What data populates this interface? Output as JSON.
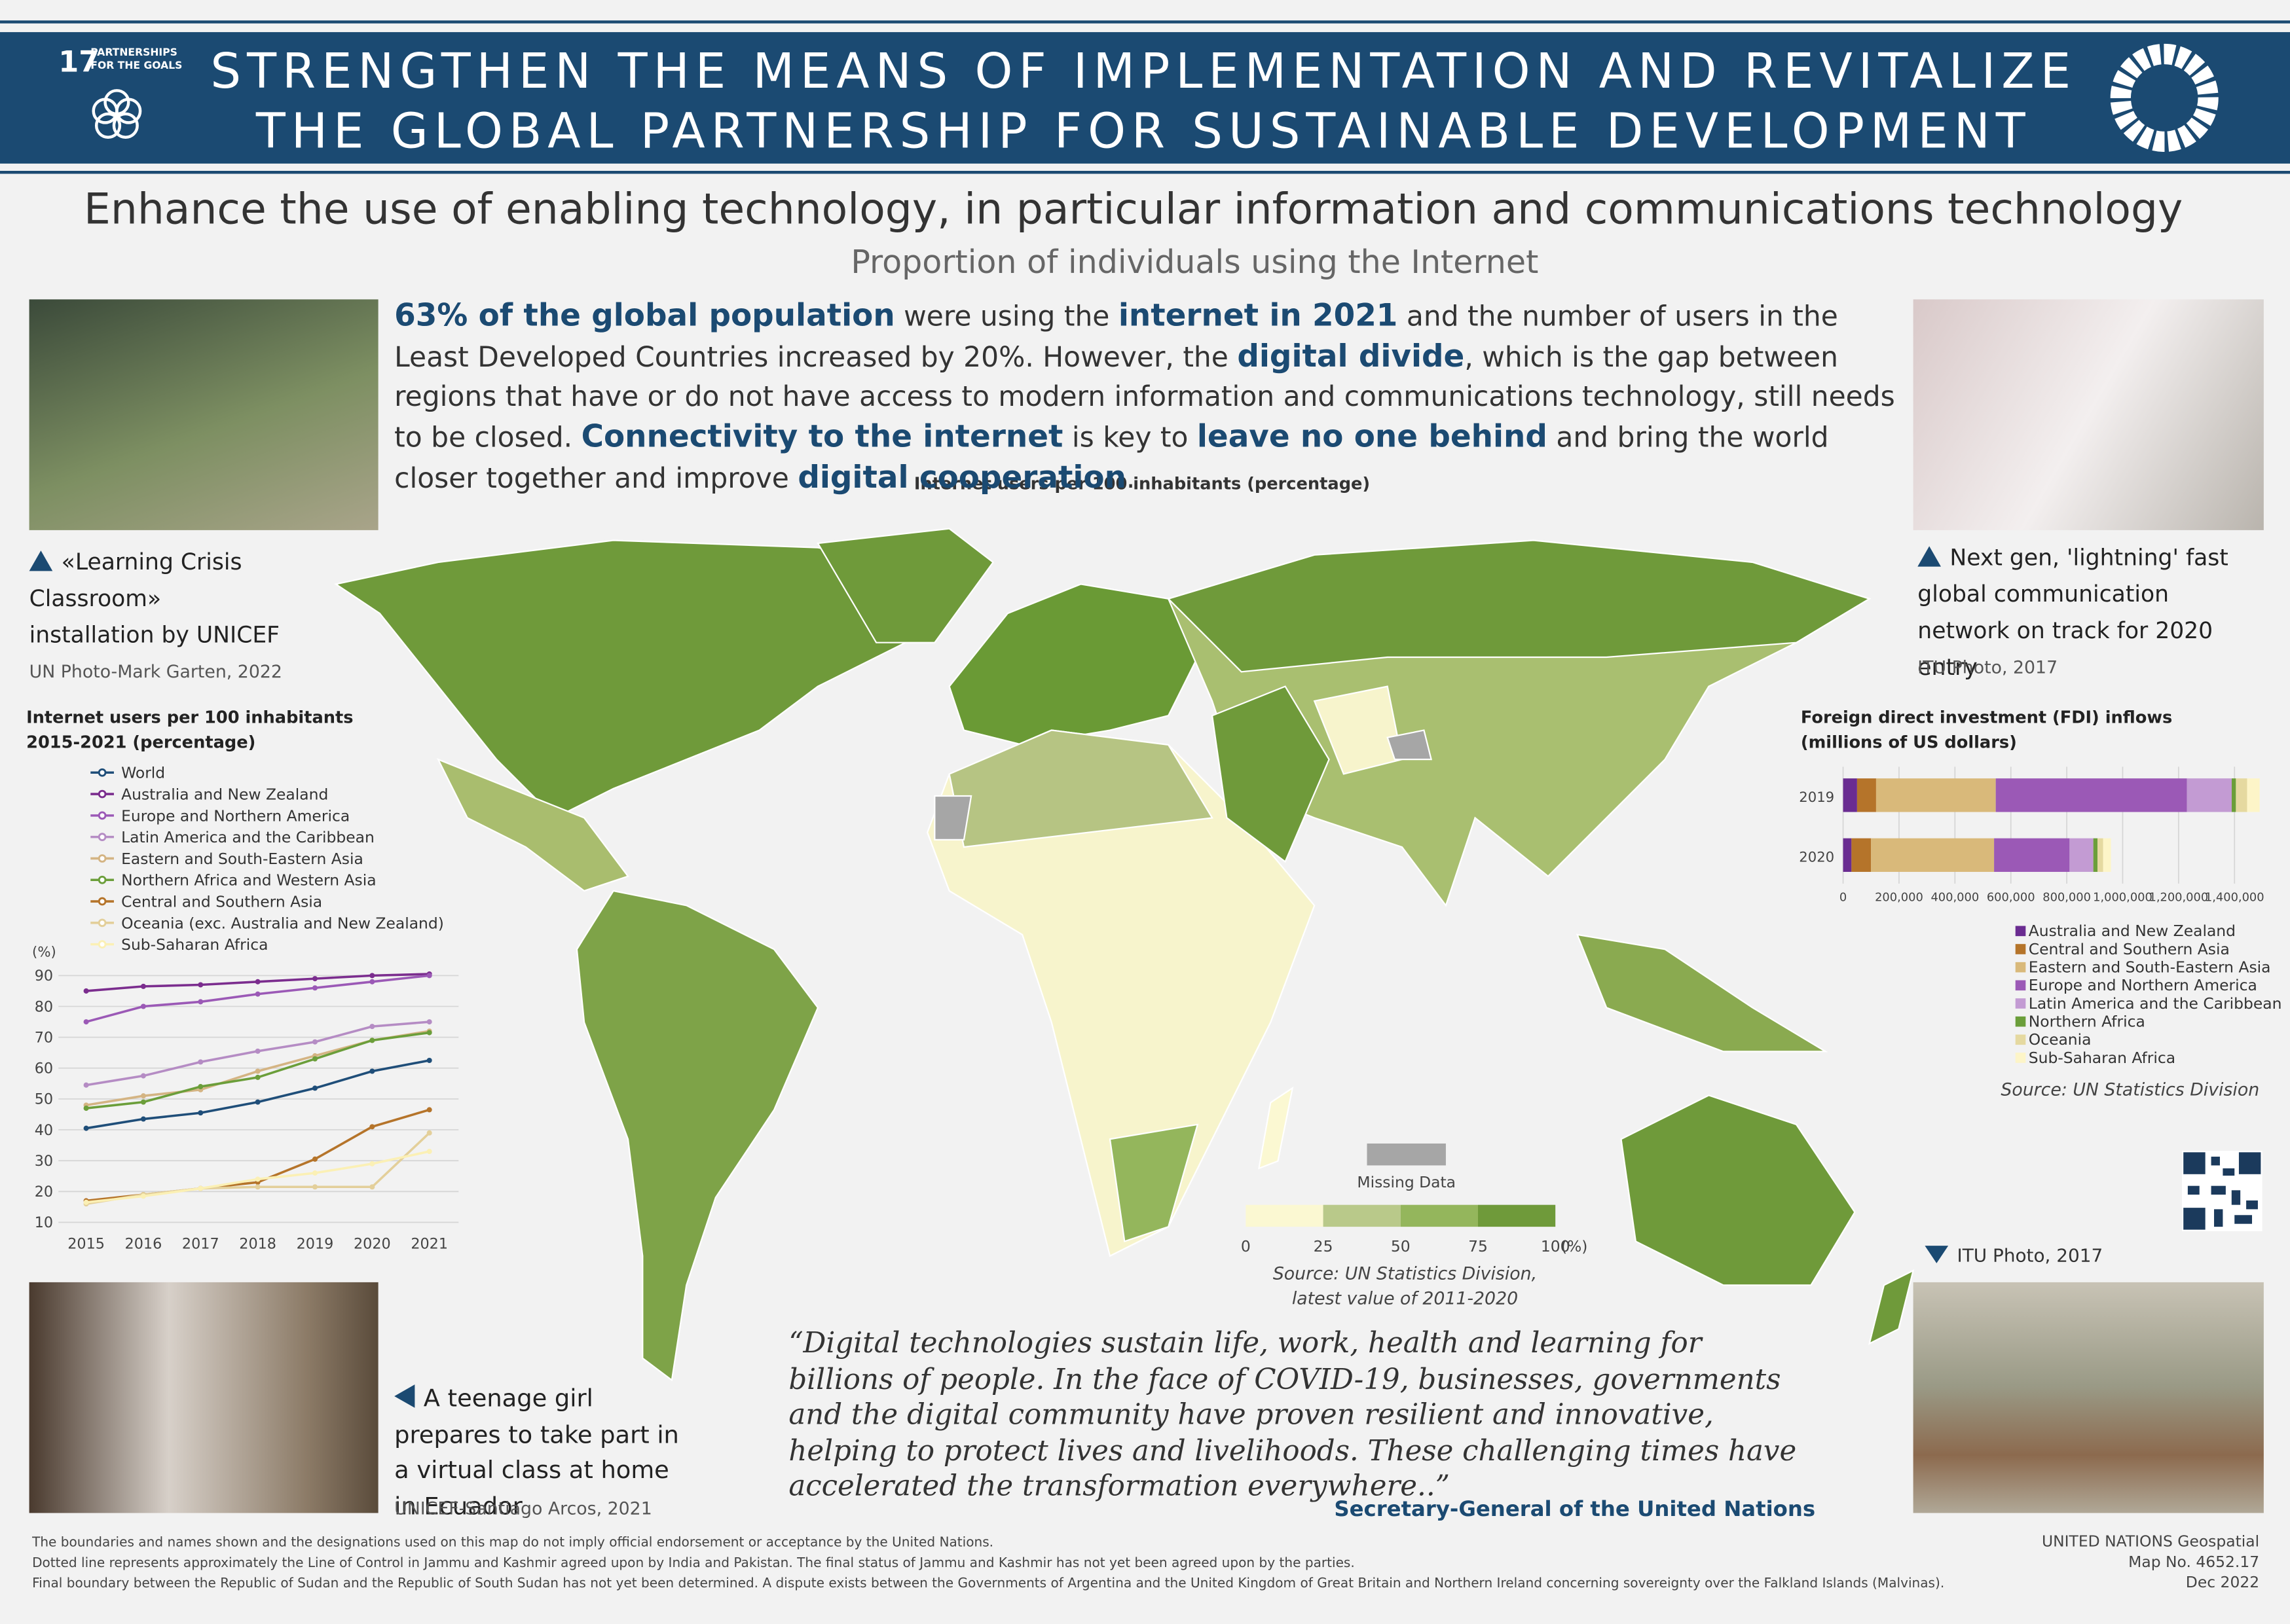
{
  "header": {
    "goal_number": "17",
    "goal_name_line1": "PARTNERSHIPS",
    "goal_name_line2": "FOR THE GOALS",
    "title_line1": "STRENGTHEN THE MEANS OF IMPLEMENTATION AND REVITALIZE",
    "title_line2": "THE GLOBAL PARTNERSHIP FOR SUSTAINABLE DEVELOPMENT"
  },
  "target": "Enhance the use of enabling technology, in particular information and communications technology",
  "indicator": "Proportion of individuals using the Internet",
  "intro": [
    {
      "text": "63% of the global population",
      "bold": true
    },
    {
      "text": " were using the ",
      "bold": false
    },
    {
      "text": "internet in 2021",
      "bold": true
    },
    {
      "text": " and the number of users in the Least Developed Countries increased by 20%. However, the ",
      "bold": false
    },
    {
      "text": "digital divide",
      "bold": true
    },
    {
      "text": ", which is the gap between regions that have or do not have access to modern information and communications technology, still needs to be closed. ",
      "bold": false
    },
    {
      "text": "Connectivity to the internet",
      "bold": true
    },
    {
      "text": " is key to ",
      "bold": false
    },
    {
      "text": "leave no one behind",
      "bold": true
    },
    {
      "text": " and bring the world closer together and improve ",
      "bold": false
    },
    {
      "text": "digital cooperation",
      "bold": true
    },
    {
      "text": ".",
      "bold": false
    }
  ],
  "photos": [
    {
      "caption": "«Learning Crisis Classroom» installation by UNICEF",
      "credit": "UN Photo-Mark Garten, 2022"
    },
    {
      "caption": "Next gen, 'lightning' fast global communication network on track for 2020 entry",
      "credit": "ITU Photo, 2017"
    },
    {
      "credit": "ITU Photo, 2017"
    },
    {
      "caption": "A teenage girl prepares to take part in a virtual class at home in Ecuador",
      "credit": "UNICEF-Santiago Arcos, 2021"
    }
  ],
  "map": {
    "title": "Internet users per 100 inhabitants (percentage)",
    "missing_label": "Missing Data",
    "missing_color": "#a6a6a6",
    "bins": [
      0,
      25,
      50,
      75,
      100
    ],
    "colors": [
      "#fbf8d2",
      "#b9c98a",
      "#94b65c",
      "#6f9a3a"
    ],
    "unit": "(%)",
    "source_line1": "Source: UN Statistics Division,",
    "source_line2": "latest value of 2011-2020"
  },
  "chart_data": [
    {
      "type": "line",
      "title_line1": "Internet users per 100 inhabitants",
      "title_line2": "2015-2021 (percentage)",
      "y_label": "(%)",
      "x": [
        2015,
        2016,
        2017,
        2018,
        2019,
        2020,
        2021
      ],
      "xlim": [
        2015,
        2021
      ],
      "ylim": [
        10,
        90
      ],
      "yticks": [
        10,
        20,
        30,
        40,
        50,
        60,
        70,
        80,
        90
      ],
      "grid": true,
      "series": [
        {
          "name": "World",
          "color": "#1f4e79",
          "values": [
            40.5,
            43.5,
            45.5,
            49,
            53.5,
            59,
            62.5
          ]
        },
        {
          "name": "Australia and New Zealand",
          "color": "#7b2d8e",
          "values": [
            85,
            86.5,
            87,
            88,
            89,
            90,
            90.5
          ]
        },
        {
          "name": "Europe and Northern America",
          "color": "#9b59b6",
          "values": [
            75,
            80,
            81.5,
            84,
            86,
            88,
            90
          ]
        },
        {
          "name": "Latin America and the Caribbean",
          "color": "#b58cc4",
          "values": [
            54.5,
            57.5,
            62,
            65.5,
            68.5,
            73.5,
            75
          ]
        },
        {
          "name": "Eastern and South-Eastern Asia",
          "color": "#d4b483",
          "values": [
            48,
            51,
            53,
            59,
            64,
            69,
            72
          ]
        },
        {
          "name": "Northern Africa and Western Asia",
          "color": "#6b9e3a",
          "values": [
            47,
            49,
            54,
            57,
            63,
            69,
            71.5
          ]
        },
        {
          "name": "Central and Southern Asia",
          "color": "#b5742a",
          "values": [
            17,
            19,
            21,
            23,
            30.5,
            41,
            46.5
          ]
        },
        {
          "name": "Oceania (exc. Australia and New Zealand)",
          "color": "#e3cf9a",
          "values": [
            16,
            19,
            21,
            21.5,
            21.5,
            21.5,
            39
          ]
        },
        {
          "name": "Sub-Saharan Africa",
          "color": "#fbf0b5",
          "values": [
            16.5,
            18.5,
            21,
            24,
            26,
            29,
            33
          ]
        }
      ]
    },
    {
      "type": "stacked_bar_horizontal",
      "title_line1": "Foreign direct investment (FDI) inflows",
      "title_line2": "(millions of US dollars)",
      "categories": [
        "2019",
        "2020"
      ],
      "xlim": [
        0,
        1500000
      ],
      "xticks": [
        0,
        {
          "value": 200000,
          "label": "200,000"
        },
        {
          "value": 400000,
          "label": "400,000"
        },
        {
          "value": 600000,
          "label": "600,000"
        },
        {
          "value": 800000,
          "label": "800,000"
        },
        {
          "value": 1000000,
          "label": "1,000,000"
        },
        {
          "value": 1200000,
          "label": "1,200,000"
        },
        {
          "value": 1400000,
          "label": "1,400,000"
        }
      ],
      "grid": true,
      "series": [
        {
          "name": "Australia and New Zealand",
          "color": "#6a2c91",
          "values": [
            50000,
            30000
          ]
        },
        {
          "name": "Central and Southern Asia",
          "color": "#b5742a",
          "values": [
            68000,
            70000
          ]
        },
        {
          "name": "Eastern and South-Eastern Asia",
          "color": "#d9b97a",
          "values": [
            428000,
            440000
          ]
        },
        {
          "name": "Europe and Northern America",
          "color": "#9b59b6",
          "values": [
            684000,
            270000
          ]
        },
        {
          "name": "Latin America and the Caribbean",
          "color": "#c39bd3",
          "values": [
            160000,
            85000
          ]
        },
        {
          "name": "Northern Africa",
          "color": "#6b9e3a",
          "values": [
            15000,
            15000
          ]
        },
        {
          "name": "Oceania",
          "color": "#e5d9a0",
          "values": [
            40000,
            20000
          ]
        },
        {
          "name": "Sub-Saharan Africa",
          "color": "#fdf5c8",
          "values": [
            45000,
            28000
          ]
        }
      ],
      "source": "Source: UN Statistics Division"
    }
  ],
  "quote": "“Digital technologies sustain life, work, health and learning for billions of people. In the face of COVID-19, businesses, governments and the digital community have proven resilient and innovative, helping to protect lives and livelihoods. These challenging times have accelerated the transformation everywhere..”",
  "quote_author": "Secretary-General of the United Nations",
  "disclaimer": [
    "The boundaries and names shown and the designations used on this map do not imply official endorsement or acceptance by the United Nations.",
    "Dotted line represents approximately the Line of Control in Jammu and Kashmir agreed upon by India and Pakistan. The final status of Jammu and Kashmir has not yet been agreed upon by the parties.",
    "Final boundary between the Republic of Sudan and the Republic of South Sudan has not yet been determined. A dispute exists between the Governments of Argentina and the United Kingdom of Great Britain and Northern Ireland concerning sovereignty over the Falkland Islands (Malvinas)."
  ],
  "footer": [
    "UNITED NATIONS Geospatial",
    "Map No. 4652.17",
    "Dec 2022"
  ]
}
